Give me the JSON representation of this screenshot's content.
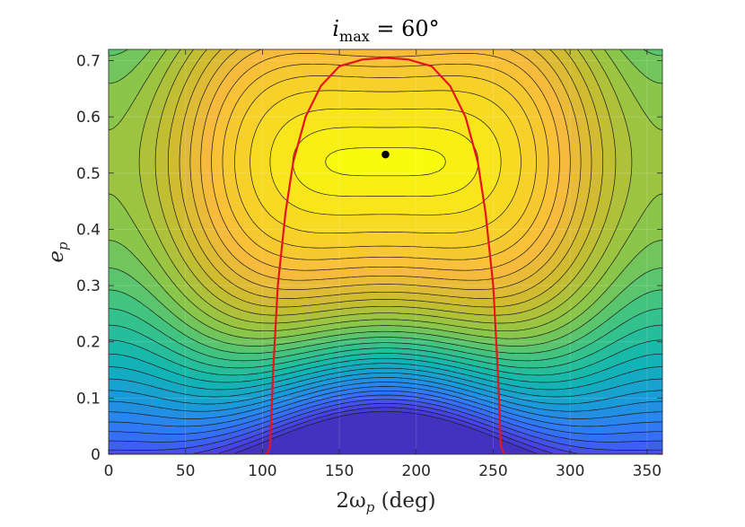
{
  "chart_data": {
    "type": "contour",
    "title": {
      "prefix": "i",
      "subscript": "max",
      "suffix": " = 60°"
    },
    "xlabel": {
      "prefix": "2ω",
      "subscript": "p",
      "suffix": " (deg)"
    },
    "ylabel": {
      "prefix": "e",
      "subscript": "p",
      "suffix": ""
    },
    "xlim": [
      0,
      360
    ],
    "ylim": [
      0,
      0.72
    ],
    "xticks": [
      0,
      50,
      100,
      150,
      200,
      250,
      300,
      350
    ],
    "yticks": [
      0,
      0.1,
      0.2,
      0.3,
      0.4,
      0.5,
      0.6,
      0.7
    ],
    "ytick_labels": [
      "0",
      "0.1",
      "0.2",
      "0.3",
      "0.4",
      "0.5",
      "0.6",
      "0.7"
    ],
    "grid": true,
    "colormap": "parula",
    "maximum_point": {
      "x": 180,
      "y": 0.533,
      "color": "#000000"
    },
    "boundary_curve": {
      "color": "#e8141b",
      "points": [
        [
          0,
          0
        ],
        [
          103,
          0
        ],
        [
          105,
          0.015
        ],
        [
          107,
          0.15
        ],
        [
          110,
          0.3
        ],
        [
          115,
          0.43
        ],
        [
          120,
          0.52
        ],
        [
          128,
          0.6
        ],
        [
          138,
          0.655
        ],
        [
          150,
          0.69
        ],
        [
          165,
          0.702
        ],
        [
          180,
          0.705
        ],
        [
          195,
          0.702
        ],
        [
          210,
          0.69
        ],
        [
          222,
          0.655
        ],
        [
          232,
          0.6
        ],
        [
          240,
          0.52
        ],
        [
          245,
          0.43
        ],
        [
          250,
          0.3
        ],
        [
          253,
          0.15
        ],
        [
          255,
          0.015
        ],
        [
          257,
          0
        ],
        [
          360,
          0
        ]
      ]
    },
    "contour_levels": [
      0.995,
      0.97,
      0.93,
      0.875,
      0.82,
      0.77,
      0.72,
      0.67,
      0.62,
      0.57,
      0.52,
      0.47,
      0.42,
      0.37,
      0.32,
      0.27,
      0.22,
      0.17,
      0.12,
      0.07,
      0.02,
      -0.03,
      -0.08,
      -0.13,
      -0.18,
      -0.23,
      -0.28,
      -0.33,
      -0.38,
      -0.43,
      -0.48,
      -0.53,
      -0.58
    ]
  }
}
